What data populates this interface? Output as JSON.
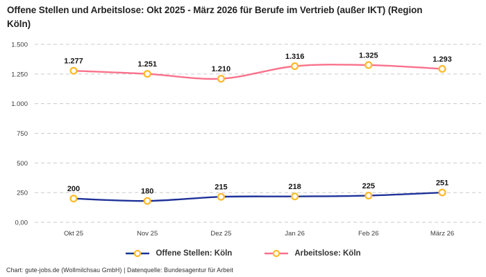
{
  "title": "Offene Stellen und Arbeitslose: Okt 2025 - März 2026 für Berufe im Vertrieb (außer IKT) (Region Köln)",
  "footer": "Chart: gute-jobs.de (Wollmilchsau GmbH) | Datenquelle: Bundesagentur für Arbeit",
  "chart_data": {
    "type": "line",
    "categories": [
      "Okt 25",
      "Nov 25",
      "Dez 25",
      "Jan 26",
      "Feb 26",
      "März 26"
    ],
    "series": [
      {
        "name": "Offene Stellen: Köln",
        "color": "#1E3299",
        "values": [
          200,
          180,
          215,
          218,
          225,
          251
        ],
        "labels": [
          "200",
          "180",
          "215",
          "218",
          "225",
          "251"
        ]
      },
      {
        "name": "Arbeitslose: Köln",
        "color": "#F9718B",
        "values": [
          1277,
          1251,
          1210,
          1316,
          1325,
          1293
        ],
        "labels": [
          "1.277",
          "1.251",
          "1.210",
          "1.316",
          "1.325",
          "1.293"
        ]
      }
    ],
    "marker_color": "#FDBA2D",
    "marker_fill": "#FFFFFF",
    "grid_color": "#C9C9C9",
    "label_color": "#141414",
    "tick_color": "#3C3C3C",
    "ylim": [
      0,
      1500
    ],
    "yticks": [
      {
        "value": 0,
        "label": "0,00"
      },
      {
        "value": 250,
        "label": "250"
      },
      {
        "value": 500,
        "label": "500"
      },
      {
        "value": 750,
        "label": "750"
      },
      {
        "value": 1000,
        "label": "1.000"
      },
      {
        "value": 1250,
        "label": "1.250"
      },
      {
        "value": 1500,
        "label": "1.500"
      }
    ],
    "grid": "horizontal-dashed",
    "legend_position": "bottom"
  }
}
